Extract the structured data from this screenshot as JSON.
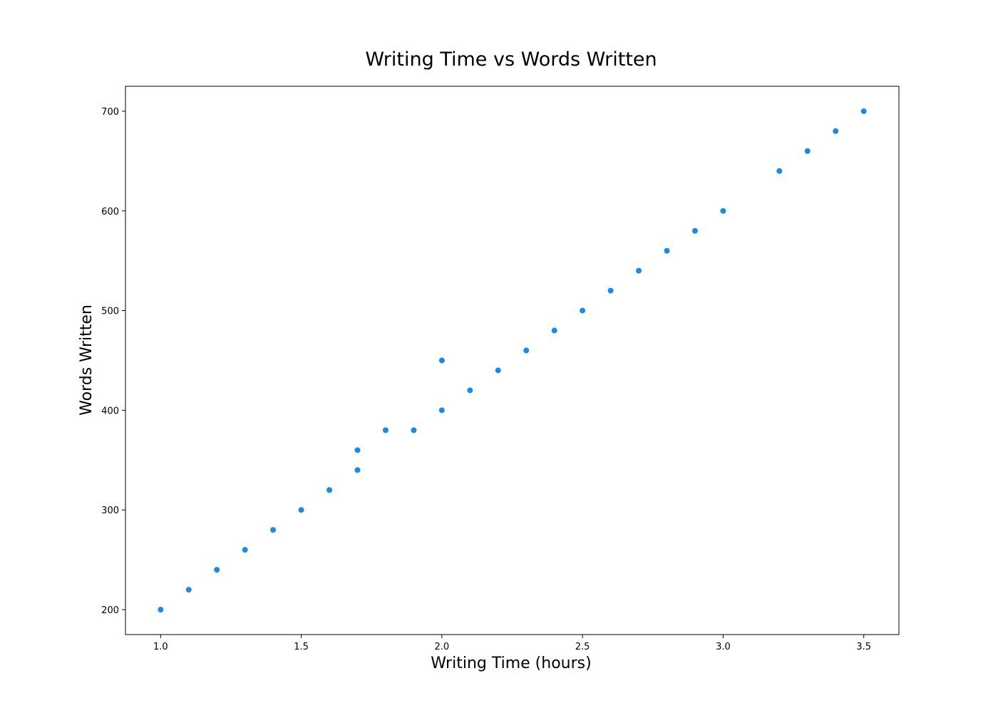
{
  "chart_data": {
    "type": "scatter",
    "title": "Writing Time vs Words Written",
    "xlabel": "Writing Time (hours)",
    "ylabel": "Words Written",
    "xlim": [
      0.875,
      3.625
    ],
    "ylim": [
      175,
      725
    ],
    "x_ticks": [
      1.0,
      1.5,
      2.0,
      2.5,
      3.0,
      3.5
    ],
    "x_tick_labels": [
      "1.0",
      "1.5",
      "2.0",
      "2.5",
      "3.0",
      "3.5"
    ],
    "y_ticks": [
      200,
      300,
      400,
      500,
      600,
      700
    ],
    "y_tick_labels": [
      "200",
      "300",
      "400",
      "500",
      "600",
      "700"
    ],
    "grid": false,
    "legend": "none",
    "point_color": "#1e88e5",
    "points": [
      {
        "x": 1.0,
        "y": 200
      },
      {
        "x": 1.1,
        "y": 220
      },
      {
        "x": 1.2,
        "y": 240
      },
      {
        "x": 1.3,
        "y": 260
      },
      {
        "x": 1.4,
        "y": 280
      },
      {
        "x": 1.5,
        "y": 300
      },
      {
        "x": 1.6,
        "y": 320
      },
      {
        "x": 1.7,
        "y": 340
      },
      {
        "x": 1.7,
        "y": 360
      },
      {
        "x": 1.8,
        "y": 380
      },
      {
        "x": 1.9,
        "y": 380
      },
      {
        "x": 2.0,
        "y": 400
      },
      {
        "x": 2.0,
        "y": 450
      },
      {
        "x": 2.1,
        "y": 420
      },
      {
        "x": 2.2,
        "y": 440
      },
      {
        "x": 2.3,
        "y": 460
      },
      {
        "x": 2.4,
        "y": 480
      },
      {
        "x": 2.5,
        "y": 500
      },
      {
        "x": 2.6,
        "y": 520
      },
      {
        "x": 2.7,
        "y": 540
      },
      {
        "x": 2.8,
        "y": 560
      },
      {
        "x": 2.9,
        "y": 580
      },
      {
        "x": 3.0,
        "y": 600
      },
      {
        "x": 3.2,
        "y": 640
      },
      {
        "x": 3.3,
        "y": 660
      },
      {
        "x": 3.4,
        "y": 680
      },
      {
        "x": 3.5,
        "y": 700
      }
    ]
  }
}
